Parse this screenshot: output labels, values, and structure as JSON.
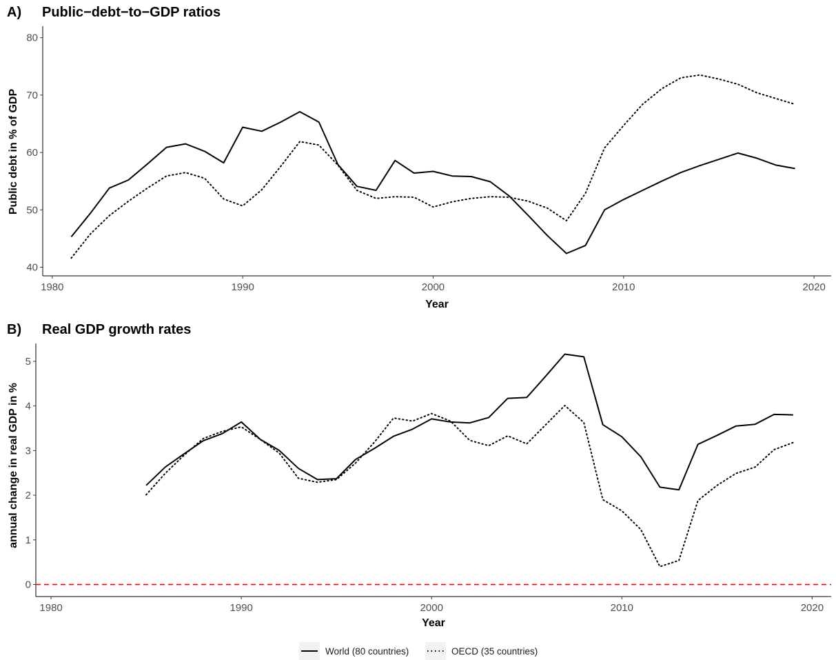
{
  "chart_data": [
    {
      "type": "line",
      "panel_label": "A)",
      "title": "Public−debt−to−GDP ratios",
      "xlabel": "Year",
      "ylabel": "Public debt in % of GDP",
      "xlim": [
        1979.5,
        2020.9
      ],
      "ylim": [
        38.5,
        82
      ],
      "xticks": [
        1980,
        1990,
        2000,
        2010,
        2020
      ],
      "yticks": [
        40,
        50,
        60,
        70,
        80
      ],
      "grid": false,
      "series": [
        {
          "name": "World (80 countries)",
          "style": "solid",
          "x": [
            1981,
            1982,
            1983,
            1984,
            1985,
            1986,
            1987,
            1988,
            1989,
            1990,
            1991,
            1992,
            1993,
            1994,
            1995,
            1996,
            1997,
            1998,
            1999,
            2000,
            2001,
            2002,
            2003,
            2004,
            2005,
            2006,
            2007,
            2008,
            2009,
            2010,
            2011,
            2012,
            2013,
            2014,
            2015,
            2016,
            2017,
            2018,
            2019
          ],
          "values": [
            45.3,
            49.4,
            53.8,
            55.2,
            58.0,
            60.9,
            61.5,
            60.2,
            58.2,
            64.4,
            63.7,
            65.3,
            67.1,
            65.3,
            57.9,
            54.1,
            53.4,
            58.6,
            56.4,
            56.7,
            55.9,
            55.8,
            54.9,
            52.4,
            49.0,
            45.5,
            42.4,
            43.8,
            50.0,
            51.8,
            53.4,
            55.0,
            56.5,
            57.7,
            58.8,
            59.9,
            59.0,
            57.8,
            57.2
          ]
        },
        {
          "name": "OECD (35 countries)",
          "style": "dotted",
          "x": [
            1981,
            1982,
            1983,
            1984,
            1985,
            1986,
            1987,
            1988,
            1989,
            1990,
            1991,
            1992,
            1993,
            1994,
            1995,
            1996,
            1997,
            1998,
            1999,
            2000,
            2001,
            2002,
            2003,
            2004,
            2005,
            2006,
            2007,
            2008,
            2009,
            2010,
            2011,
            2012,
            2013,
            2014,
            2015,
            2016,
            2017,
            2018,
            2019
          ],
          "values": [
            41.6,
            45.8,
            49.0,
            51.5,
            53.8,
            55.9,
            56.5,
            55.5,
            51.9,
            50.7,
            53.5,
            57.6,
            61.9,
            61.3,
            57.8,
            53.4,
            52.0,
            52.3,
            52.2,
            50.5,
            51.4,
            52.0,
            52.3,
            52.2,
            51.5,
            50.3,
            48.1,
            52.9,
            60.8,
            64.7,
            68.4,
            71.1,
            73.0,
            73.5,
            72.8,
            71.9,
            70.4,
            69.4,
            68.4
          ]
        }
      ]
    },
    {
      "type": "line",
      "panel_label": "B)",
      "title": "Real GDP growth rates",
      "xlabel": "Year",
      "ylabel": "annual change in real GDP in %",
      "xlim": [
        1979.2,
        2021.0
      ],
      "ylim": [
        -0.27,
        5.4
      ],
      "xticks": [
        1980,
        1990,
        2000,
        2010,
        2020
      ],
      "yticks": [
        0,
        1,
        2,
        3,
        4,
        5
      ],
      "grid": false,
      "reference_line": {
        "y": 0,
        "color": "#ff0000",
        "style": "dashed"
      },
      "series": [
        {
          "name": "World (80 countries)",
          "style": "solid",
          "x": [
            1985,
            1986,
            1987,
            1988,
            1989,
            1990,
            1991,
            1992,
            1993,
            1994,
            1995,
            1996,
            1997,
            1998,
            1999,
            2000,
            2001,
            2002,
            2003,
            2004,
            2005,
            2006,
            2007,
            2008,
            2009,
            2010,
            2011,
            2012,
            2013,
            2014,
            2015,
            2016,
            2017,
            2018,
            2019
          ],
          "values": [
            2.22,
            2.63,
            2.93,
            3.22,
            3.38,
            3.64,
            3.25,
            3.0,
            2.6,
            2.35,
            2.37,
            2.8,
            3.05,
            3.32,
            3.48,
            3.71,
            3.64,
            3.62,
            3.74,
            4.17,
            4.19,
            4.67,
            5.16,
            5.1,
            3.58,
            3.31,
            2.86,
            2.18,
            2.12,
            3.14,
            3.34,
            3.55,
            3.59,
            3.81,
            3.8
          ]
        },
        {
          "name": "OECD (35 countries)",
          "style": "dotted",
          "x": [
            1985,
            1986,
            1987,
            1988,
            1989,
            1990,
            1991,
            1992,
            1993,
            1994,
            1995,
            1996,
            1997,
            1998,
            1999,
            2000,
            2001,
            2002,
            2003,
            2004,
            2005,
            2006,
            2007,
            2008,
            2009,
            2010,
            2011,
            2012,
            2013,
            2014,
            2015,
            2016,
            2017,
            2018,
            2019
          ],
          "values": [
            2.01,
            2.49,
            2.9,
            3.27,
            3.43,
            3.53,
            3.25,
            2.94,
            2.38,
            2.29,
            2.35,
            2.72,
            3.19,
            3.73,
            3.66,
            3.83,
            3.66,
            3.23,
            3.11,
            3.33,
            3.15,
            3.58,
            4.01,
            3.63,
            1.9,
            1.65,
            1.23,
            0.4,
            0.54,
            1.88,
            2.22,
            2.49,
            2.63,
            3.02,
            3.18
          ]
        }
      ]
    }
  ],
  "legend": {
    "position": "bottom",
    "items": [
      {
        "label": "World (80 countries)",
        "style": "solid"
      },
      {
        "label": "OECD (35 countries)",
        "style": "dotted"
      }
    ]
  }
}
